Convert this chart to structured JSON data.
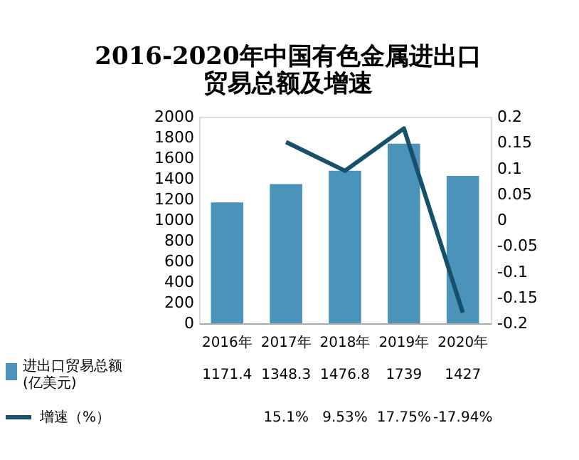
{
  "chart_data": {
    "type": "bar",
    "title": "2016-2020年中国有色金属进出口贸易总额及增速",
    "categories": [
      "2016年",
      "2017年",
      "2018年",
      "2019年",
      "2020年"
    ],
    "series": [
      {
        "name": "进出口贸易总额(亿美元)",
        "color": "#4b93b8",
        "values": [
          1171.4,
          1348.3,
          1476.8,
          1739,
          1427
        ],
        "value_labels": [
          "1171.4",
          "1348.3",
          "1476.8",
          "1739",
          "1427"
        ]
      },
      {
        "name": "增速（%）",
        "type": "line",
        "axis": "y2",
        "color": "#17506b",
        "values": [
          null,
          0.151,
          0.0953,
          0.1775,
          -0.1794
        ],
        "value_labels": [
          null,
          "15.1%",
          "9.53%",
          "17.75%",
          "-17.94%"
        ]
      }
    ],
    "ylim": [
      0,
      2000
    ],
    "yticks": [
      0,
      200,
      400,
      600,
      800,
      1000,
      1200,
      1400,
      1600,
      1800,
      2000
    ],
    "y2lim": [
      -0.2,
      0.2
    ],
    "y2ticks": [
      -0.2,
      -0.15,
      -0.1,
      -0.05,
      0,
      0.05,
      0.1,
      0.15,
      0.2
    ],
    "grid": false,
    "legend": "bottom"
  }
}
